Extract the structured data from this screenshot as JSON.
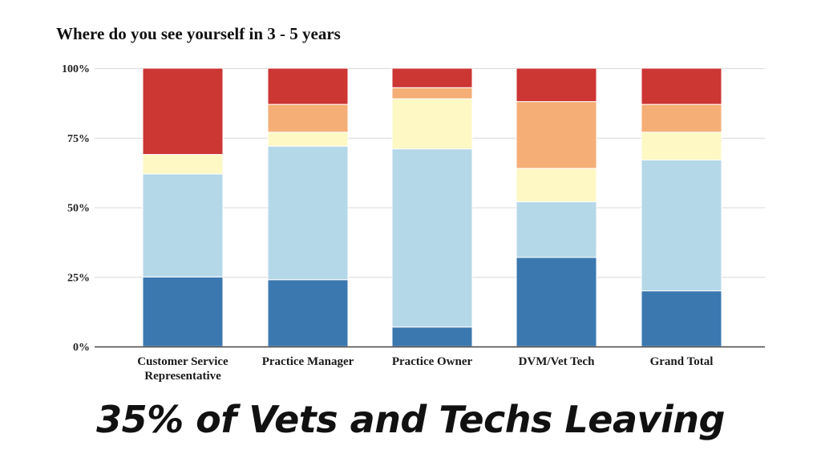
{
  "caption": "35% of Vets and Techs Leaving",
  "chart_data": {
    "type": "bar",
    "stacked": true,
    "title": "Where do you see yourself in 3 - 5 years",
    "xlabel": "",
    "ylabel": "",
    "ylim": [
      0,
      100
    ],
    "y_ticks": [
      "0%",
      "25%",
      "50%",
      "75%",
      "100%"
    ],
    "grid": true,
    "legend": "none",
    "categories": [
      [
        "Customer Service",
        "Representative"
      ],
      [
        "Practice Manager"
      ],
      [
        "Practice Owner"
      ],
      [
        "DVM/Vet Tech"
      ],
      [
        "Grand Total"
      ]
    ],
    "series": [
      {
        "color": "#3b78b0",
        "values": [
          25,
          24,
          7,
          32,
          20
        ]
      },
      {
        "color": "#b5d8e8",
        "values": [
          37,
          48,
          64,
          20,
          47
        ]
      },
      {
        "color": "#fdf8c4",
        "values": [
          7,
          5,
          18,
          12,
          10
        ]
      },
      {
        "color": "#f5ae76",
        "values": [
          0,
          10,
          4,
          24,
          10
        ]
      },
      {
        "color": "#cc3633",
        "values": [
          31,
          13,
          7,
          12,
          13
        ]
      }
    ]
  }
}
